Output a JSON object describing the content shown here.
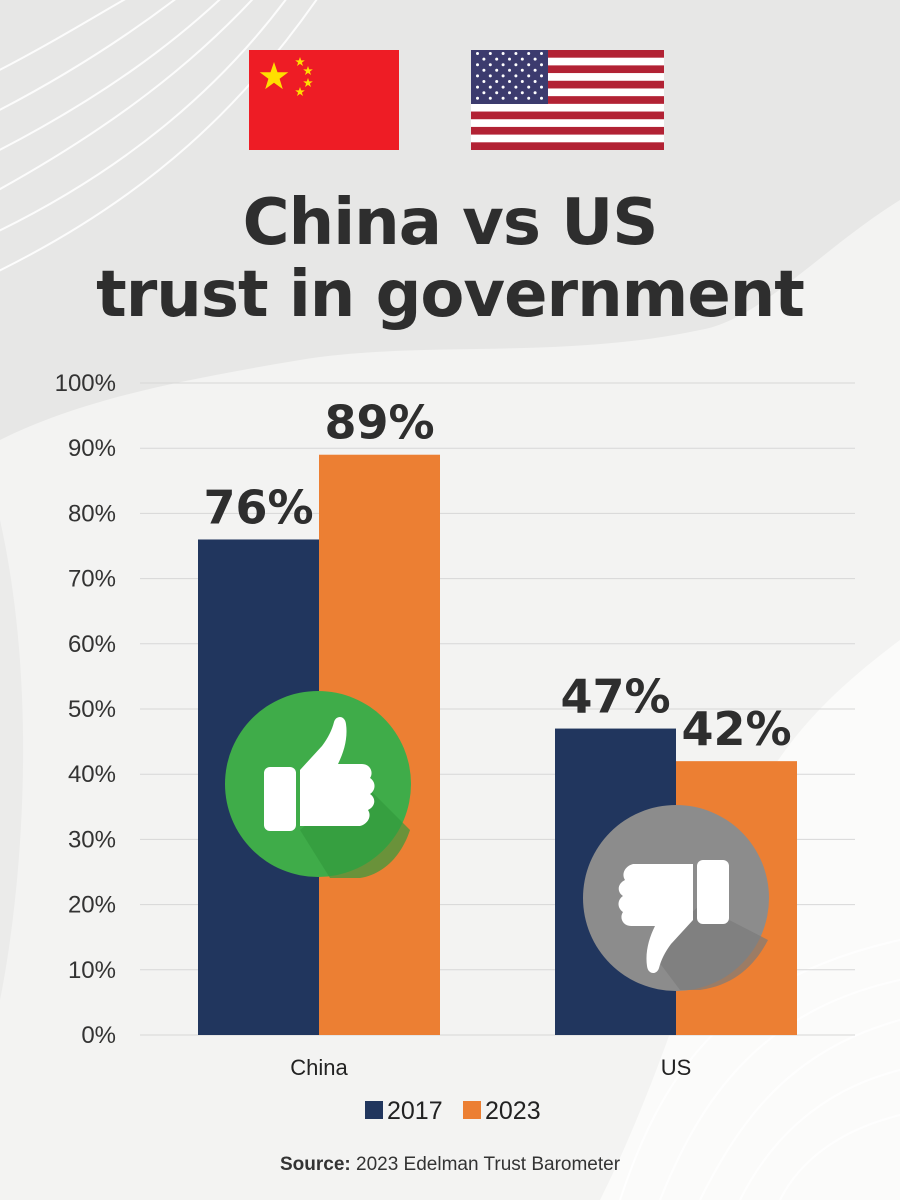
{
  "flags": [
    {
      "name": "china-flag",
      "colors": {
        "field": "#ee1c25",
        "stars": "#ffde00"
      }
    },
    {
      "name": "us-flag",
      "colors": {
        "stripe_red": "#b22234",
        "canton": "#3c3b6e",
        "white": "#ffffff"
      }
    }
  ],
  "title": {
    "line1": "China vs US",
    "line2": "trust in government"
  },
  "chart_data": {
    "type": "bar",
    "categories": [
      "China",
      "US"
    ],
    "series": [
      {
        "name": "2017",
        "values": [
          76,
          47
        ],
        "color": "#21365e"
      },
      {
        "name": "2023",
        "values": [
          89,
          42
        ],
        "color": "#ec7f33"
      }
    ],
    "data_labels": [
      "76%",
      "89%",
      "47%",
      "42%"
    ],
    "ylim": [
      0,
      100
    ],
    "y_ticks": [
      "0%",
      "10%",
      "20%",
      "30%",
      "40%",
      "50%",
      "60%",
      "70%",
      "80%",
      "90%",
      "100%"
    ],
    "grid": true,
    "legend": "bottom-center",
    "icons": [
      {
        "name": "thumbs-up-icon",
        "category": "China",
        "color": "#3fac49"
      },
      {
        "name": "thumbs-down-icon",
        "category": "US",
        "color": "#8c8c8c"
      }
    ]
  },
  "source": {
    "label": "Source:",
    "text": "2023 Edelman Trust Barometer"
  }
}
